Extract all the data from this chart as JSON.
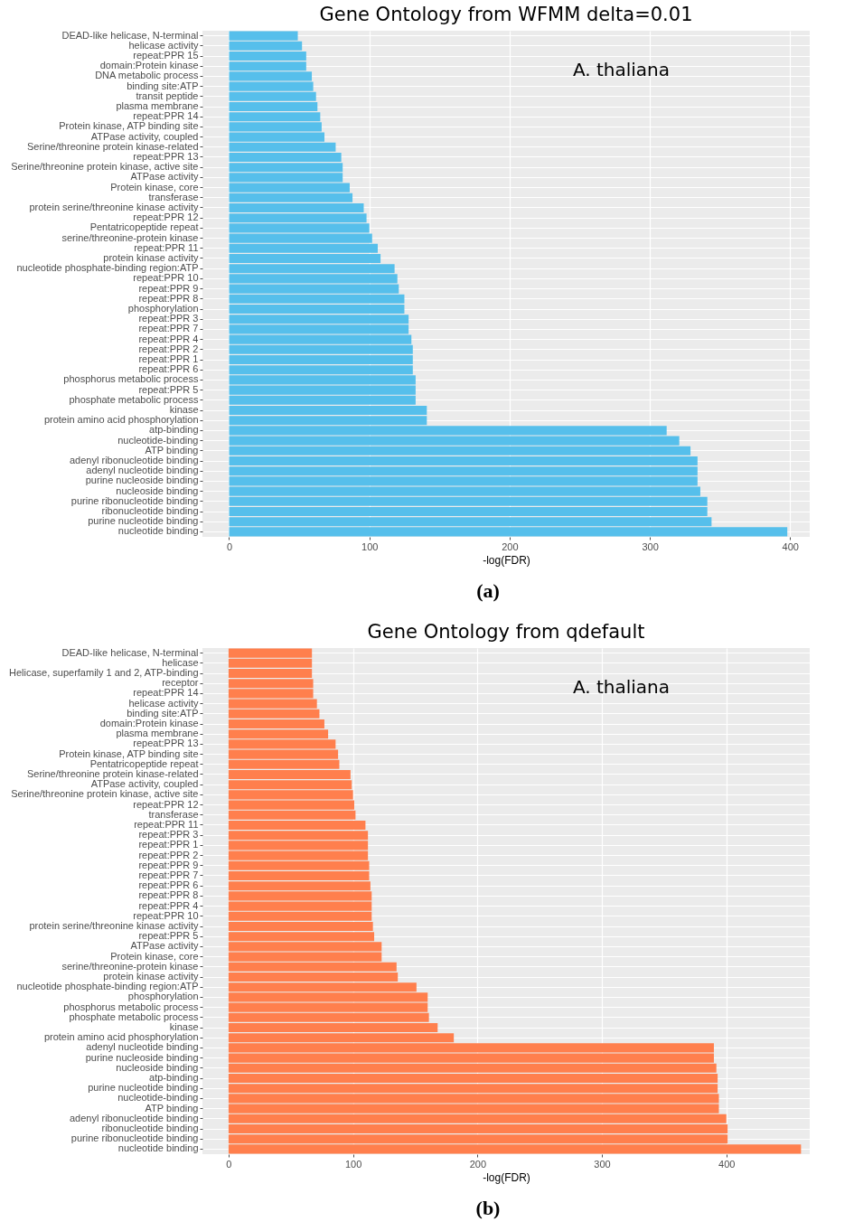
{
  "chart_data": [
    {
      "type": "bar",
      "orientation": "horizontal",
      "title": "Gene Ontology from WFMM delta=0.01",
      "xlabel": "-log(FDR)",
      "color": "#56bfeb",
      "grid": true,
      "categories": [
        "DEAD-like helicase, N-terminal",
        "helicase activity",
        "repeat:PPR 15",
        "domain:Protein kinase",
        "DNA metabolic process",
        "binding site:ATP",
        "transit peptide",
        "plasma membrane",
        "repeat:PPR 14",
        "Protein kinase, ATP binding site",
        "ATPase activity, coupled",
        "Serine/threonine protein kinase-related",
        "repeat:PPR 13",
        "Serine/threonine protein kinase, active site",
        "ATPase activity",
        "Protein kinase, core",
        "transferase",
        "protein serine/threonine kinase activity",
        "repeat:PPR 12",
        "Pentatricopeptide repeat",
        "serine/threonine-protein kinase",
        "repeat:PPR 11",
        "protein kinase activity",
        "nucleotide phosphate-binding region:ATP",
        "repeat:PPR 10",
        "repeat:PPR 9",
        "repeat:PPR 8",
        "phosphorylation",
        "repeat:PPR 3",
        "repeat:PPR 7",
        "repeat:PPR 4",
        "repeat:PPR 2",
        "repeat:PPR 1",
        "repeat:PPR 6",
        "phosphorus metabolic process",
        "repeat:PPR 5",
        "phosphate metabolic process",
        "kinase",
        "protein amino acid phosphorylation",
        "atp-binding",
        "nucleotide-binding",
        "ATP binding",
        "adenyl ribonucleotide binding",
        "adenyl nucleotide binding",
        "purine nucleoside binding",
        "nucleoside binding",
        "purine ribonucleotide binding",
        "ribonucleotide binding",
        "purine nucleotide binding",
        "nucleotide binding"
      ],
      "values": [
        49,
        52,
        55,
        55,
        59,
        60,
        62,
        63,
        65,
        66,
        68,
        76,
        80,
        81,
        81,
        86,
        88,
        96,
        98,
        100,
        102,
        106,
        108,
        118,
        120,
        121,
        125,
        125,
        128,
        128,
        130,
        131,
        131,
        131,
        133,
        133,
        133,
        141,
        141,
        312,
        321,
        329,
        334,
        334,
        334,
        336,
        341,
        341,
        344,
        398
      ],
      "xlim": [
        -19,
        414
      ],
      "xticks": [
        0,
        100,
        200,
        300,
        400
      ],
      "annotations": [
        "A. thaliana",
        "(a)"
      ]
    },
    {
      "type": "bar",
      "orientation": "horizontal",
      "title": "Gene Ontology from qdefault",
      "xlabel": "-log(FDR)",
      "color": "#ff7f4d",
      "grid": true,
      "categories": [
        "DEAD-like helicase, N-terminal",
        "helicase",
        "Helicase, superfamily 1 and 2, ATP-binding",
        "receptor",
        "repeat:PPR 14",
        "helicase activity",
        "binding site:ATP",
        "domain:Protein kinase",
        "plasma membrane",
        "repeat:PPR 13",
        "Protein kinase, ATP binding site",
        "Pentatricopeptide repeat",
        "Serine/threonine protein kinase-related",
        "ATPase activity, coupled",
        "Serine/threonine protein kinase, active site",
        "repeat:PPR 12",
        "transferase",
        "repeat:PPR 11",
        "repeat:PPR 3",
        "repeat:PPR 1",
        "repeat:PPR 2",
        "repeat:PPR 9",
        "repeat:PPR 7",
        "repeat:PPR 6",
        "repeat:PPR 8",
        "repeat:PPR 4",
        "repeat:PPR 10",
        "protein serine/threonine kinase activity",
        "repeat:PPR 5",
        "ATPase activity",
        "Protein kinase, core",
        "serine/threonine-protein kinase",
        "protein kinase activity",
        "nucleotide phosphate-binding region:ATP",
        "phosphorylation",
        "phosphorus metabolic process",
        "phosphate metabolic process",
        "kinase",
        "protein amino acid phosphorylation",
        "adenyl nucleotide binding",
        "purine nucleoside binding",
        "nucleoside binding",
        "atp-binding",
        "purine nucleotide binding",
        "nucleotide-binding",
        "ATP binding",
        "adenyl ribonucleotide binding",
        "ribonucleotide binding",
        "purine ribonucleotide binding",
        "nucleotide binding"
      ],
      "values": [
        67,
        67,
        67,
        68,
        68,
        71,
        73,
        77,
        80,
        86,
        88,
        89,
        98,
        99,
        100,
        101,
        102,
        110,
        112,
        112,
        112,
        113,
        113,
        114,
        115,
        115,
        115,
        116,
        117,
        123,
        123,
        135,
        136,
        151,
        160,
        160,
        161,
        168,
        181,
        390,
        390,
        392,
        393,
        393,
        394,
        394,
        400,
        401,
        401,
        460
      ],
      "xlim": [
        -21,
        467
      ],
      "xticks": [
        0,
        100,
        200,
        300,
        400
      ],
      "annotations": [
        "A. thaliana",
        "(b)"
      ]
    }
  ]
}
